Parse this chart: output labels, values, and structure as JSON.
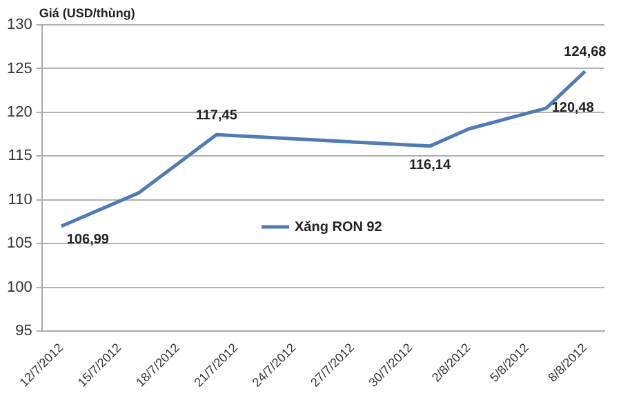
{
  "chart_data": {
    "type": "line",
    "ylabel": "Giá (USD/thùng)",
    "x": [
      "2012-07-12",
      "2012-07-16",
      "2012-07-20",
      "2012-07-31",
      "2012-08-02",
      "2012-08-06",
      "2012-08-08"
    ],
    "series": [
      {
        "name": "Xăng RON 92",
        "color": "#4f7bb4",
        "values": [
          106.99,
          110.8,
          117.45,
          116.14,
          118.1,
          120.48,
          124.68
        ],
        "value_labels": [
          "106,99",
          null,
          "117,45",
          "116,14",
          null,
          "120,48",
          "124,68"
        ]
      }
    ],
    "xlim": [
      "2012-07-11",
      "2012-08-09"
    ],
    "xticks": [
      {
        "value": "2012-07-12",
        "label": "12/7/2012"
      },
      {
        "value": "2012-07-15",
        "label": "15/7/2012"
      },
      {
        "value": "2012-07-18",
        "label": "18/7/2012"
      },
      {
        "value": "2012-07-21",
        "label": "21/7/2012"
      },
      {
        "value": "2012-07-24",
        "label": "24/7/2012"
      },
      {
        "value": "2012-07-27",
        "label": "27/7/2012"
      },
      {
        "value": "2012-07-30",
        "label": "30/7/2012"
      },
      {
        "value": "2012-08-02",
        "label": "2/8/2012"
      },
      {
        "value": "2012-08-05",
        "label": "5/8/2012"
      },
      {
        "value": "2012-08-08",
        "label": "8/8/2012"
      }
    ],
    "ylim": [
      95,
      130
    ],
    "yticks": [
      95,
      100,
      105,
      110,
      115,
      120,
      125,
      130
    ],
    "grid": "y",
    "legend": "center",
    "marker": "none",
    "line_style": "solid"
  }
}
